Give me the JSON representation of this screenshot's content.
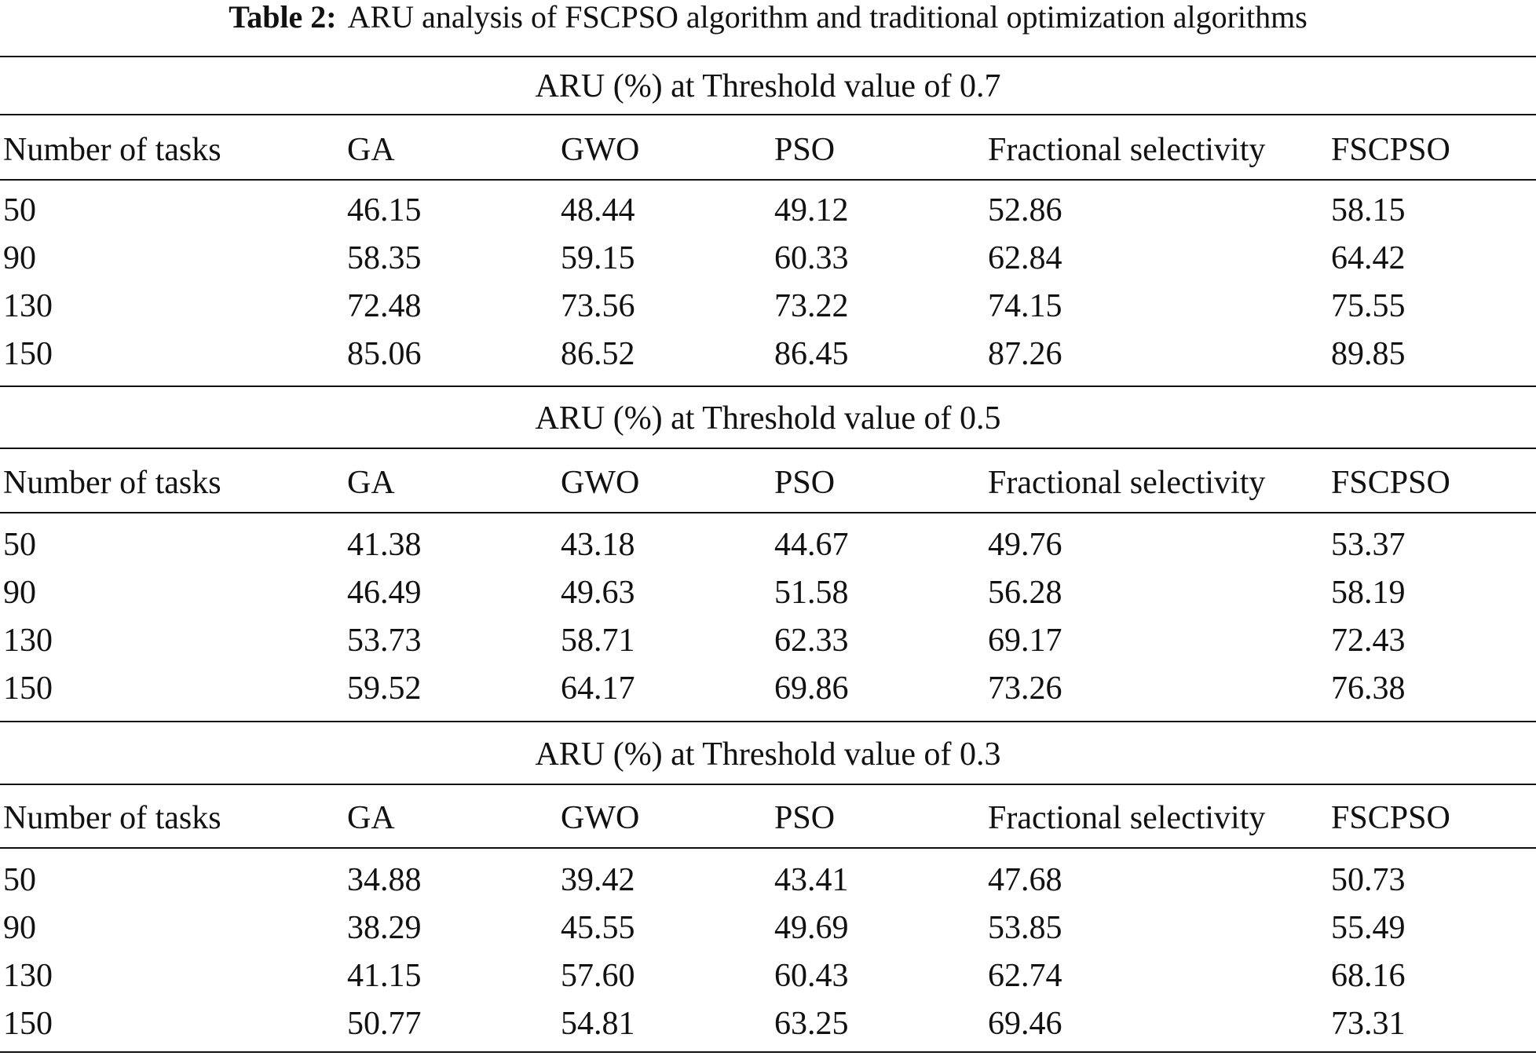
{
  "caption": {
    "label": "Table 2:",
    "text": "ARU analysis of FSCPSO algorithm and traditional optimization algorithms"
  },
  "columns": [
    "Number of tasks",
    "GA",
    "GWO",
    "PSO",
    "Fractional selectivity",
    "FSCPSO"
  ],
  "sections": [
    {
      "title": "ARU (%) at Threshold value of 0.7",
      "rows": [
        [
          "50",
          "46.15",
          "48.44",
          "49.12",
          "52.86",
          "58.15"
        ],
        [
          "90",
          "58.35",
          "59.15",
          "60.33",
          "62.84",
          "64.42"
        ],
        [
          "130",
          "72.48",
          "73.56",
          "73.22",
          "74.15",
          "75.55"
        ],
        [
          "150",
          "85.06",
          "86.52",
          "86.45",
          "87.26",
          "89.85"
        ]
      ]
    },
    {
      "title": "ARU (%) at Threshold value of 0.5",
      "rows": [
        [
          "50",
          "41.38",
          "43.18",
          "44.67",
          "49.76",
          "53.37"
        ],
        [
          "90",
          "46.49",
          "49.63",
          "51.58",
          "56.28",
          "58.19"
        ],
        [
          "130",
          "53.73",
          "58.71",
          "62.33",
          "69.17",
          "72.43"
        ],
        [
          "150",
          "59.52",
          "64.17",
          "69.86",
          "73.26",
          "76.38"
        ]
      ]
    },
    {
      "title": "ARU (%) at Threshold value of 0.3",
      "rows": [
        [
          "50",
          "34.88",
          "39.42",
          "43.41",
          "47.68",
          "50.73"
        ],
        [
          "90",
          "38.29",
          "45.55",
          "49.69",
          "53.85",
          "55.49"
        ],
        [
          "130",
          "41.15",
          "57.60",
          "60.43",
          "62.74",
          "68.16"
        ],
        [
          "150",
          "50.77",
          "54.81",
          "63.25",
          "69.46",
          "73.31"
        ]
      ]
    }
  ]
}
